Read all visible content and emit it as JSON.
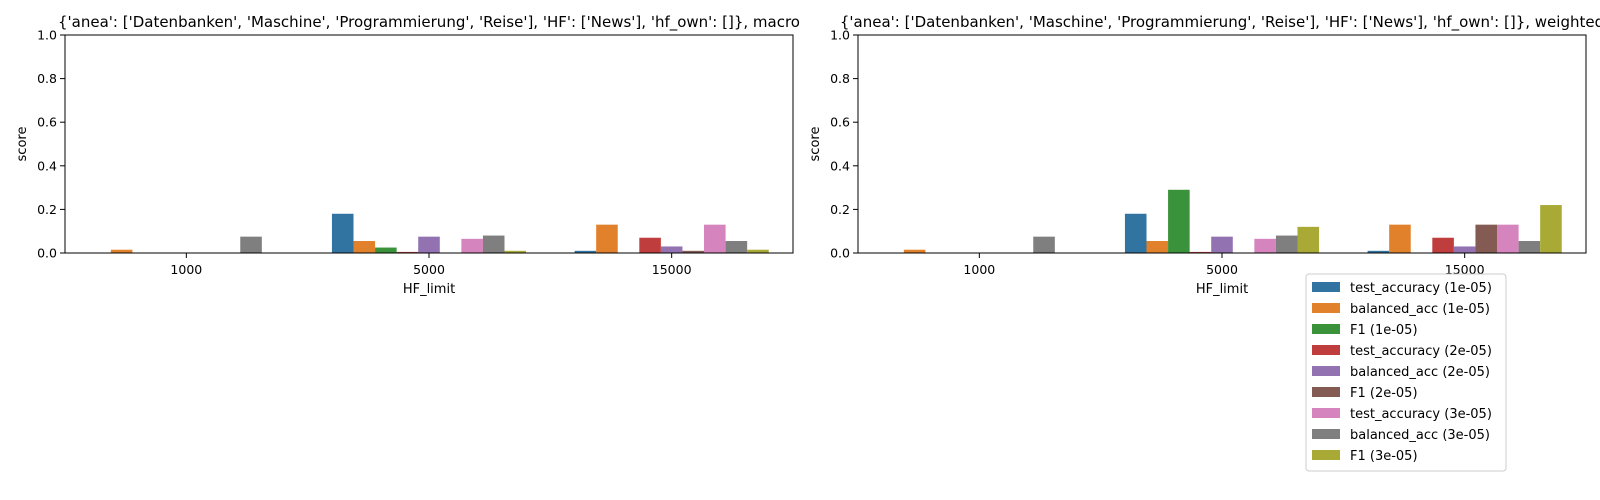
{
  "chart_data": [
    {
      "type": "bar",
      "title": "{'anea': ['Datenbanken', 'Maschine', 'Programmierung', 'Reise'], 'HF': ['News'], 'hf_own': []}, macro",
      "xlabel": "HF_limit",
      "ylabel": "score",
      "ylim": [
        0,
        1
      ],
      "yticks": [
        "0.0",
        "0.2",
        "0.4",
        "0.6",
        "0.8",
        "1.0"
      ],
      "categories": [
        "1000",
        "5000",
        "15000"
      ],
      "series": [
        {
          "name": "test_accuracy (1e-05)",
          "values": [
            0.0,
            0.18,
            0.01
          ]
        },
        {
          "name": "balanced_acc (1e-05)",
          "values": [
            0.015,
            0.055,
            0.13
          ]
        },
        {
          "name": "F1 (1e-05)",
          "values": [
            0.0,
            0.025,
            0.0
          ]
        },
        {
          "name": "test_accuracy (2e-05)",
          "values": [
            0.0,
            0.005,
            0.07
          ]
        },
        {
          "name": "balanced_acc (2e-05)",
          "values": [
            0.0,
            0.075,
            0.03
          ]
        },
        {
          "name": "F1 (2e-05)",
          "values": [
            0.0,
            0.0,
            0.01
          ]
        },
        {
          "name": "test_accuracy (3e-05)",
          "values": [
            0.0,
            0.065,
            0.13
          ]
        },
        {
          "name": "balanced_acc (3e-05)",
          "values": [
            0.075,
            0.08,
            0.055
          ]
        },
        {
          "name": "F1 (3e-05)",
          "values": [
            0.0,
            0.01,
            0.015
          ]
        }
      ]
    },
    {
      "type": "bar",
      "title": "{'anea': ['Datenbanken', 'Maschine', 'Programmierung', 'Reise'], 'HF': ['News'], 'hf_own': []}, weighted",
      "xlabel": "HF_limit",
      "ylabel": "score",
      "ylim": [
        0,
        1
      ],
      "yticks": [
        "0.0",
        "0.2",
        "0.4",
        "0.6",
        "0.8",
        "1.0"
      ],
      "categories": [
        "1000",
        "5000",
        "15000"
      ],
      "series": [
        {
          "name": "test_accuracy (1e-05)",
          "values": [
            0.0,
            0.18,
            0.01
          ]
        },
        {
          "name": "balanced_acc (1e-05)",
          "values": [
            0.015,
            0.055,
            0.13
          ]
        },
        {
          "name": "F1 (1e-05)",
          "values": [
            0.0,
            0.29,
            0.0
          ]
        },
        {
          "name": "test_accuracy (2e-05)",
          "values": [
            0.0,
            0.005,
            0.07
          ]
        },
        {
          "name": "balanced_acc (2e-05)",
          "values": [
            0.0,
            0.075,
            0.03
          ]
        },
        {
          "name": "F1 (2e-05)",
          "values": [
            0.0,
            0.0,
            0.13
          ]
        },
        {
          "name": "test_accuracy (3e-05)",
          "values": [
            0.0,
            0.065,
            0.13
          ]
        },
        {
          "name": "balanced_acc (3e-05)",
          "values": [
            0.075,
            0.08,
            0.055
          ]
        },
        {
          "name": "F1 (3e-05)",
          "values": [
            0.0,
            0.12,
            0.22
          ]
        }
      ]
    }
  ],
  "legend": {
    "placement": "below right panel",
    "items": [
      {
        "label": "test_accuracy (1e-05)",
        "color": "#3274a1"
      },
      {
        "label": "balanced_acc (1e-05)",
        "color": "#e1812c"
      },
      {
        "label": "F1 (1e-05)",
        "color": "#3a923a"
      },
      {
        "label": "test_accuracy (2e-05)",
        "color": "#c03d3e"
      },
      {
        "label": "balanced_acc (2e-05)",
        "color": "#9372b2"
      },
      {
        "label": "F1 (2e-05)",
        "color": "#845b53"
      },
      {
        "label": "test_accuracy (3e-05)",
        "color": "#d684bd"
      },
      {
        "label": "balanced_acc (3e-05)",
        "color": "#7f7f7f"
      },
      {
        "label": "F1 (3e-05)",
        "color": "#a9aa35"
      }
    ]
  }
}
